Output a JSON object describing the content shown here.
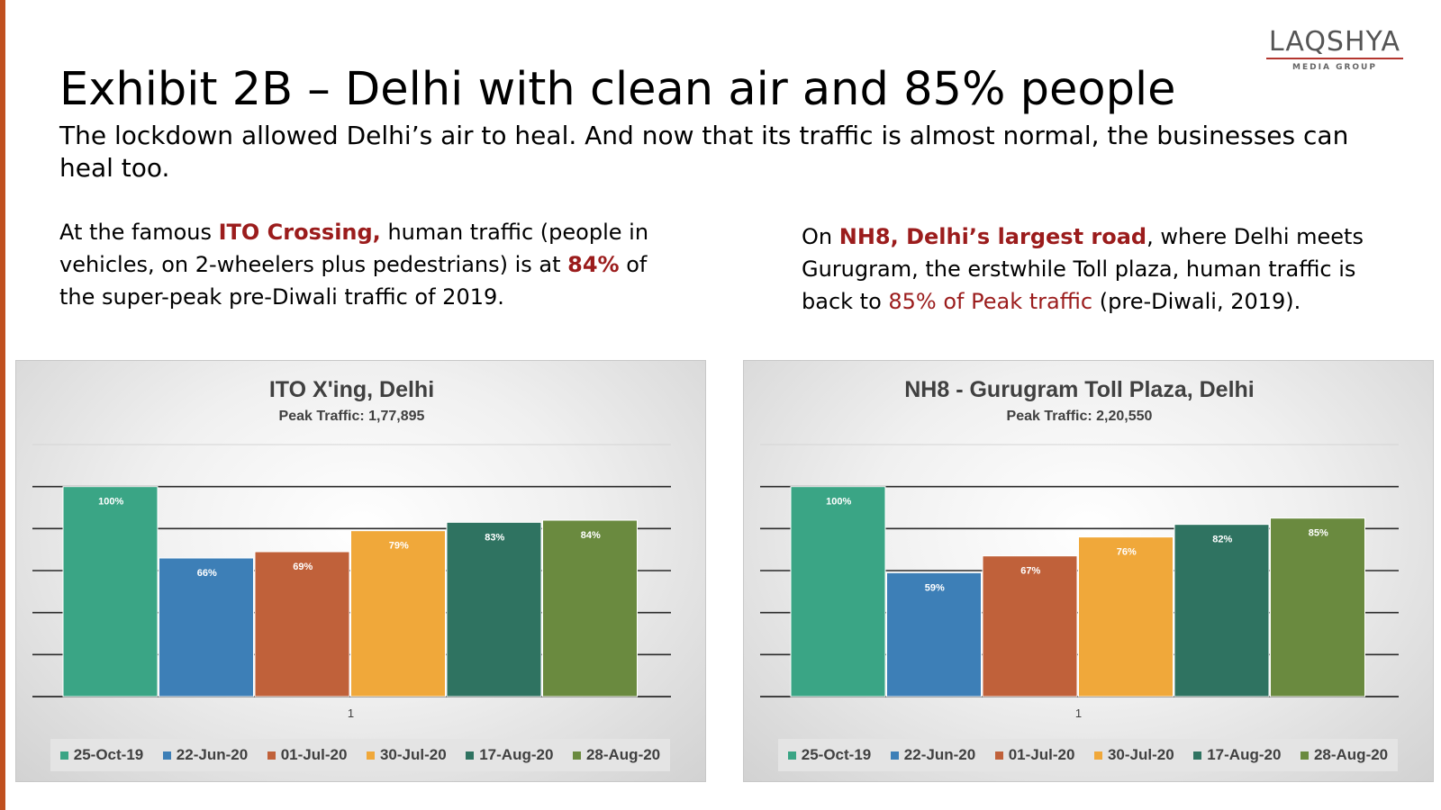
{
  "logo": {
    "word": "LAQSHYA",
    "sub": "MEDIA GROUP"
  },
  "title": "Exhibit 2B – Delhi with clean air and 85% people",
  "subtitle": "The lockdown allowed Delhi’s air to heal. And now that its traffic is almost normal, the businesses can heal too.",
  "left_text": {
    "t1": "At the famous ",
    "h1": "ITO Crossing,",
    "t2": " human traffic (people in vehicles, on 2-wheelers plus pedestrians) is at ",
    "h2": "84%",
    "t3": " of the super-peak pre-Diwali traffic of 2019."
  },
  "right_text": {
    "t1": "On ",
    "h1": "NH8, Delhi’s largest road",
    "t2": ", where Delhi meets Gurugram, the erstwhile Toll plaza, human traffic is back to ",
    "h2": "85% of Peak traffic",
    "t3": " (pre-Diwali, 2019)."
  },
  "colors": {
    "accent": "#c0501f",
    "highlight": "#9b1c1c",
    "series": [
      "#3aa585",
      "#3d7fb7",
      "#c0613a",
      "#f0a83a",
      "#2f7361",
      "#6a8a3f"
    ]
  },
  "chart_data": [
    {
      "type": "bar",
      "title": "ITO X'ing, Delhi",
      "subtitle": "Peak Traffic: 1,77,895",
      "categories": [
        "1"
      ],
      "series": [
        {
          "name": "25-Oct-19",
          "values": [
            100
          ],
          "label": "100%"
        },
        {
          "name": "22-Jun-20",
          "values": [
            66
          ],
          "label": "66%"
        },
        {
          "name": "01-Jul-20",
          "values": [
            69
          ],
          "label": "69%"
        },
        {
          "name": "30-Jul-20",
          "values": [
            79
          ],
          "label": "79%"
        },
        {
          "name": "17-Aug-20",
          "values": [
            83
          ],
          "label": "83%"
        },
        {
          "name": "28-Aug-20",
          "values": [
            84
          ],
          "label": "84%"
        }
      ],
      "ylim": [
        0,
        120
      ],
      "legend": "bottom"
    },
    {
      "type": "bar",
      "title": "NH8 - Gurugram Toll Plaza, Delhi",
      "subtitle": "Peak Traffic: 2,20,550",
      "categories": [
        "1"
      ],
      "series": [
        {
          "name": "25-Oct-19",
          "values": [
            100
          ],
          "label": "100%"
        },
        {
          "name": "22-Jun-20",
          "values": [
            59
          ],
          "label": "59%"
        },
        {
          "name": "01-Jul-20",
          "values": [
            67
          ],
          "label": "67%"
        },
        {
          "name": "30-Jul-20",
          "values": [
            76
          ],
          "label": "76%"
        },
        {
          "name": "17-Aug-20",
          "values": [
            82
          ],
          "label": "82%"
        },
        {
          "name": "28-Aug-20",
          "values": [
            85
          ],
          "label": "85%"
        }
      ],
      "ylim": [
        0,
        120
      ],
      "legend": "bottom"
    }
  ]
}
